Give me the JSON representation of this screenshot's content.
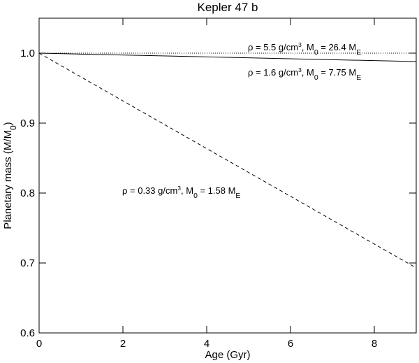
{
  "chart_data": {
    "type": "line",
    "title": "Kepler 47 b",
    "xlabel": "Age (Gyr)",
    "ylabel": [
      {
        "text": "Planetary mass (M/M"
      },
      {
        "text": "0",
        "shift": "sub"
      },
      {
        "text": ")"
      }
    ],
    "x": [
      0,
      9
    ],
    "series": [
      {
        "color": "#000000",
        "style": "dotted",
        "values": [
          1.0,
          1.0
        ]
      },
      {
        "color": "#000000",
        "style": "solid",
        "values": [
          1.0,
          0.988
        ]
      },
      {
        "color": "#000000",
        "style": "dashed",
        "values": [
          1.0,
          0.693
        ]
      }
    ],
    "annotations": [
      [
        {
          "text": "ρ = 5.5 g/cm"
        },
        {
          "text": "3",
          "shift": "sup"
        },
        {
          "text": ", M"
        },
        {
          "text": "0",
          "shift": "sub"
        },
        {
          "text": " = 26.4 M"
        },
        {
          "text": "E",
          "shift": "sub"
        }
      ],
      [
        {
          "text": "ρ = 1.6 g/cm"
        },
        {
          "text": "3",
          "shift": "sup"
        },
        {
          "text": ", M"
        },
        {
          "text": "0",
          "shift": "sub"
        },
        {
          "text": " = 7.75 M"
        },
        {
          "text": "E",
          "shift": "sub"
        }
      ],
      [
        {
          "text": "ρ = 0.33 g/cm"
        },
        {
          "text": "3",
          "shift": "sup"
        },
        {
          "text": ", M"
        },
        {
          "text": "0",
          "shift": "sub"
        },
        {
          "text": " = 1.58 M"
        },
        {
          "text": "E",
          "shift": "sub"
        }
      ]
    ],
    "xlim": [
      0,
      9
    ],
    "ylim": [
      0.6,
      1.05
    ],
    "xticks": [
      0,
      2,
      4,
      6,
      8
    ],
    "yticks": [
      0.6,
      0.7,
      0.8,
      0.9,
      {
        "value": 1.0,
        "label": "1.0"
      }
    ]
  }
}
